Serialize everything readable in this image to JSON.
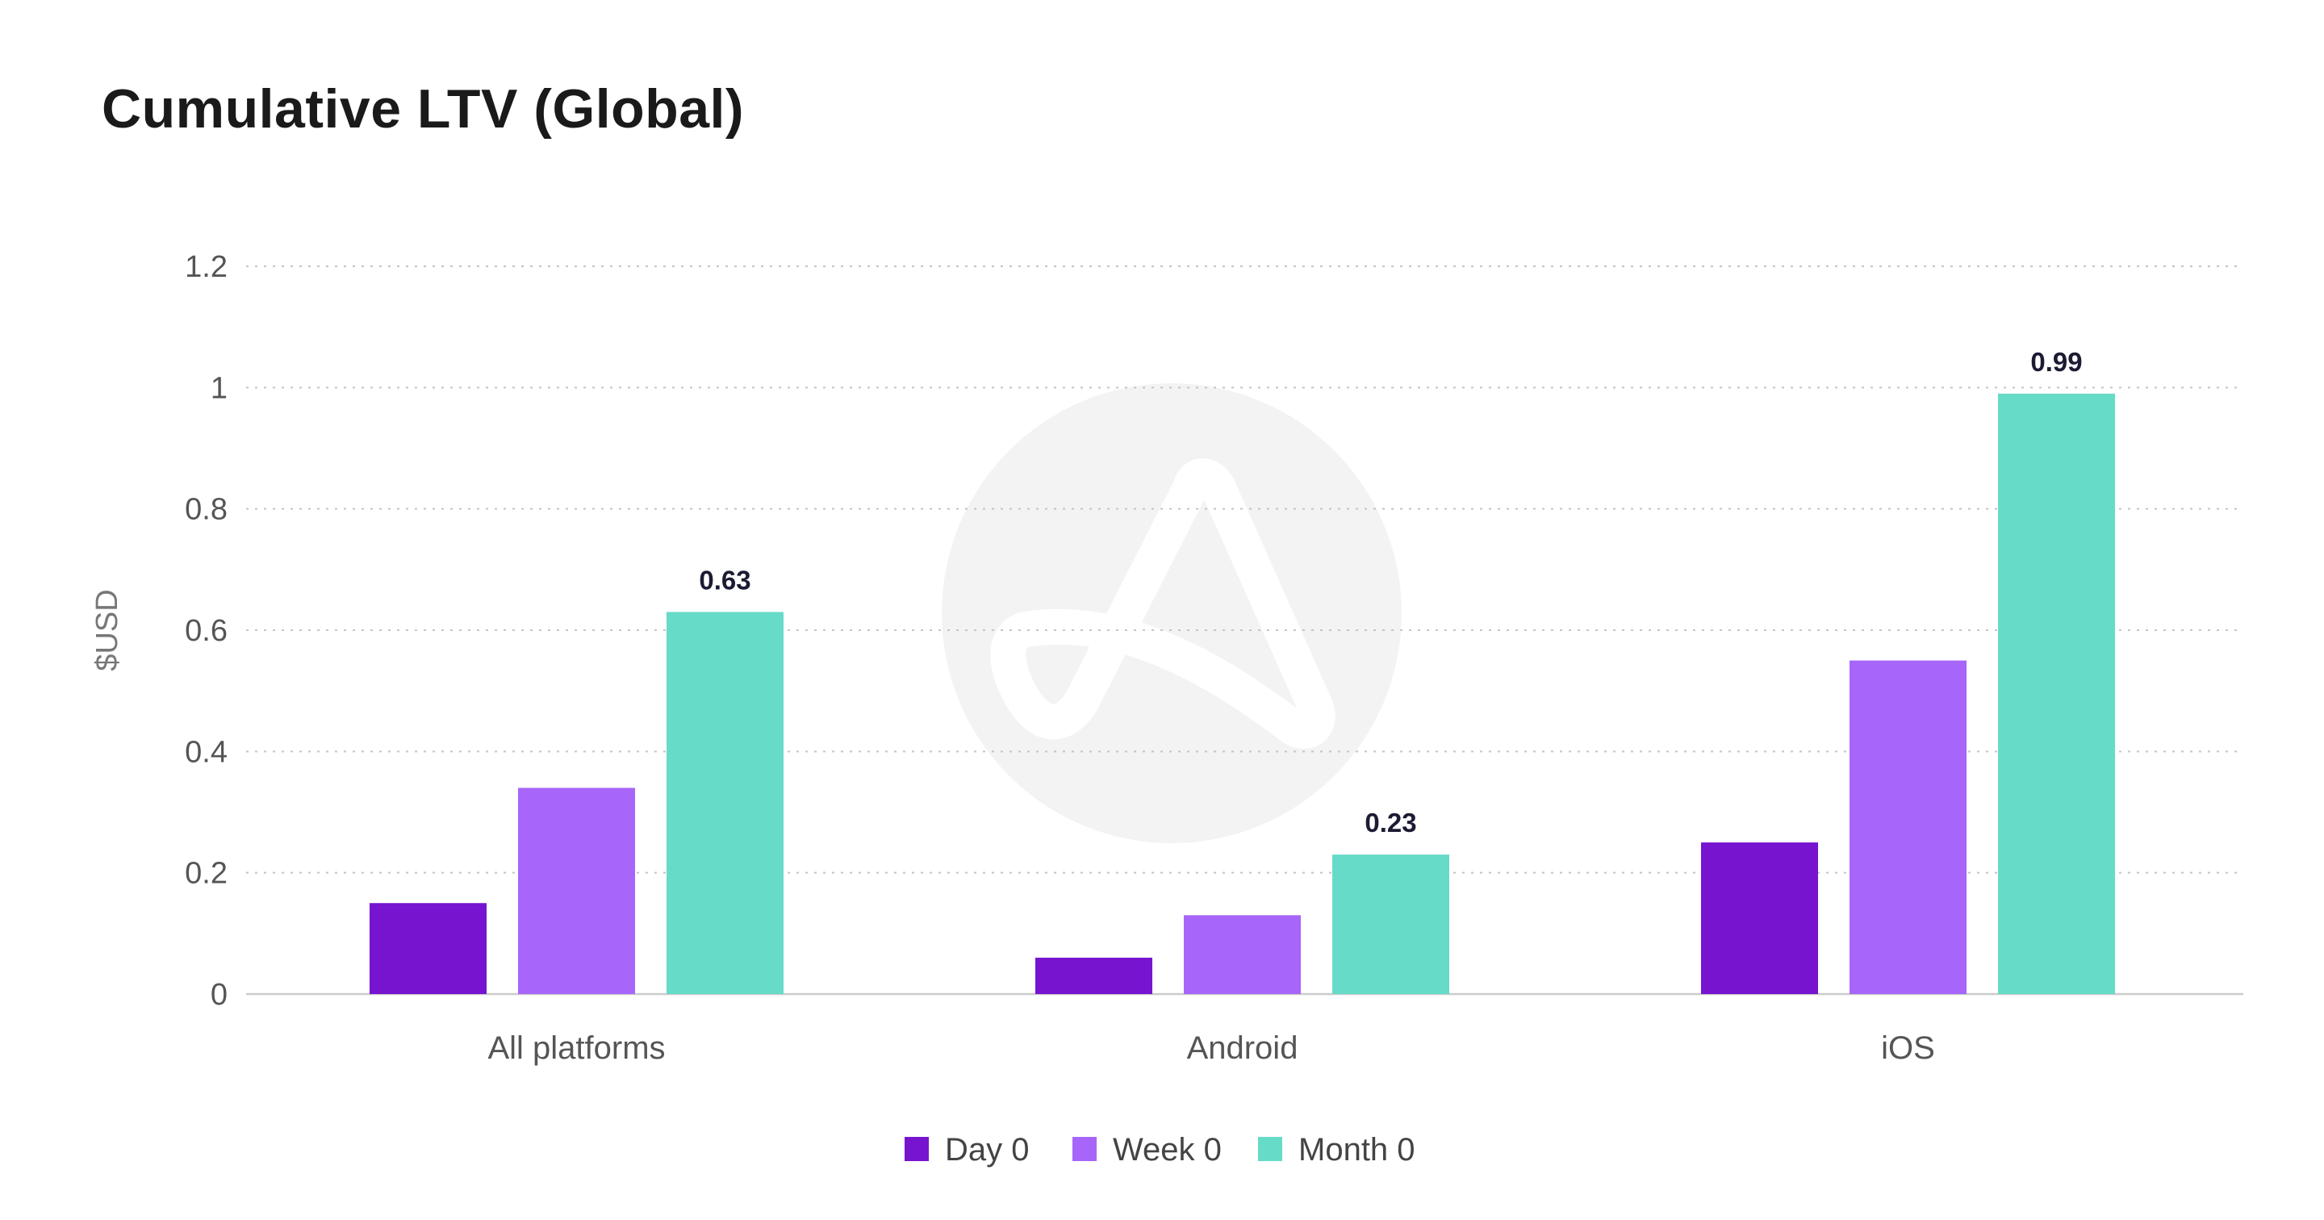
{
  "chart_data": {
    "type": "bar",
    "title": "Cumulative LTV (Global)",
    "ylabel": "$USD",
    "xlabel": "",
    "categories": [
      "All platforms",
      "Android",
      "iOS"
    ],
    "series": [
      {
        "name": "Day 0",
        "color": "#7614d0",
        "values": [
          0.15,
          0.06,
          0.25
        ]
      },
      {
        "name": "Week 0",
        "color": "#a766f9",
        "values": [
          0.34,
          0.13,
          0.55
        ]
      },
      {
        "name": "Month 0",
        "color": "#66dbc8",
        "values": [
          0.63,
          0.23,
          0.99
        ]
      }
    ],
    "ylim": [
      0,
      1.2
    ],
    "yticks": [
      0,
      0.2,
      0.4,
      0.6,
      0.8,
      1,
      1.2
    ],
    "ytick_labels": [
      "0",
      "0.2",
      "0.4",
      "0.6",
      "0.8",
      "1",
      "1.2"
    ],
    "data_labels": [
      {
        "series": "Month 0",
        "category": "All platforms",
        "text": "0.63"
      },
      {
        "series": "Month 0",
        "category": "Android",
        "text": "0.23"
      },
      {
        "series": "Month 0",
        "category": "iOS",
        "text": "0.99"
      }
    ],
    "grid": true,
    "legend_position": "bottom-center",
    "watermark": "logo-icon"
  }
}
